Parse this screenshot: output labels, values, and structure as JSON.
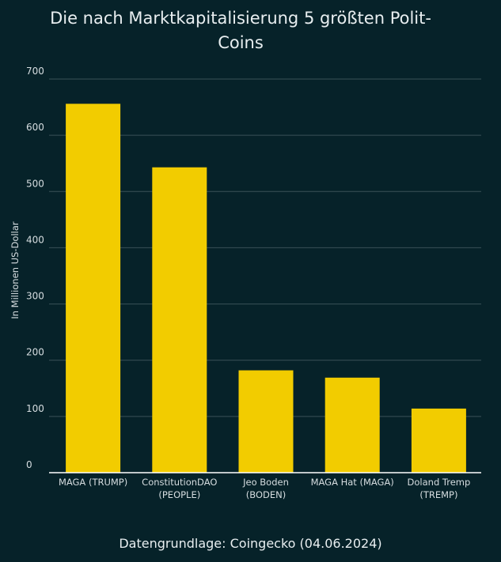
{
  "chart_data": {
    "type": "bar",
    "title": "Die nach Marktkapitalisierung 5 größten Polit-Coins",
    "ylabel": "In Millionen US-Dollar",
    "xlabel": "",
    "categories": [
      [
        "MAGA (TRUMP)"
      ],
      [
        "ConstitutionDAO",
        "(PEOPLE)"
      ],
      [
        "Jeo Boden",
        "(BODEN)"
      ],
      [
        "MAGA Hat (MAGA)"
      ],
      [
        "Doland Tremp",
        "(TREMP)"
      ]
    ],
    "values": [
      656,
      543,
      182,
      169,
      114
    ],
    "ylim": [
      0,
      700
    ],
    "yticks": [
      0,
      100,
      200,
      300,
      400,
      500,
      600,
      700
    ],
    "grid": true,
    "legend": "none",
    "bar_color": "#f2cc00",
    "background_color": "#062229",
    "gridline_color": "#3a5158",
    "text_color": "#d6dde0"
  },
  "footer": {
    "source": "Datengrundlage: Coingecko (04.06.2024)"
  }
}
